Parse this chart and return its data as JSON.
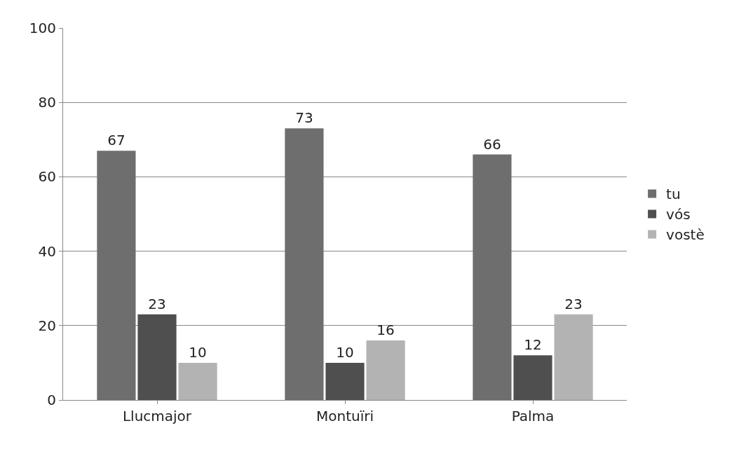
{
  "chart_data": {
    "type": "bar",
    "categories": [
      "Llucmajor",
      "Montuïri",
      "Palma"
    ],
    "series": [
      {
        "name": "tu",
        "color": "#6e6e6e",
        "values": [
          67,
          73,
          66
        ]
      },
      {
        "name": "vós",
        "color": "#4f4f4f",
        "values": [
          23,
          10,
          12
        ]
      },
      {
        "name": "vostè",
        "color": "#b3b3b3",
        "values": [
          10,
          16,
          23
        ]
      }
    ],
    "ylim": [
      0,
      100
    ],
    "yticks": [
      0,
      20,
      40,
      60,
      80,
      100
    ],
    "grid": "y",
    "legend": "right",
    "data_labels": true
  }
}
